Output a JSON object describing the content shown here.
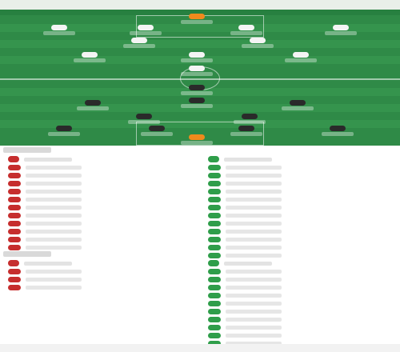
{
  "colors": {
    "pitch": "#2f8a47",
    "home_kit": "#2a2a2a",
    "away_kit": "#f4f4f4",
    "goalkeeper_kit": "#f08a1c",
    "home_accent": "#c62e2e",
    "away_accent": "#2f9e4a"
  },
  "section_icons": [
    "club-logo-icon",
    "club-logo-icon"
  ]
}
